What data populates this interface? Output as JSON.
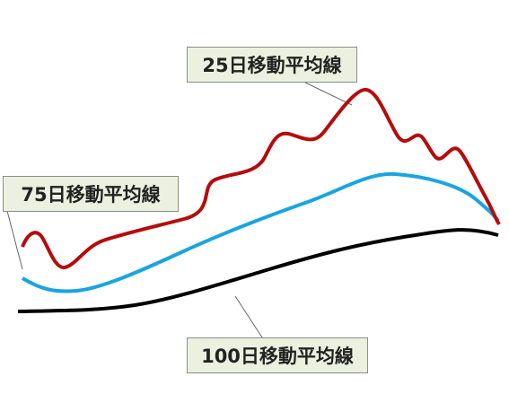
{
  "labels": {
    "ma25": "25日移動平均線",
    "ma75": "75日移動平均線",
    "ma100": "100日移動平均線"
  }
}
